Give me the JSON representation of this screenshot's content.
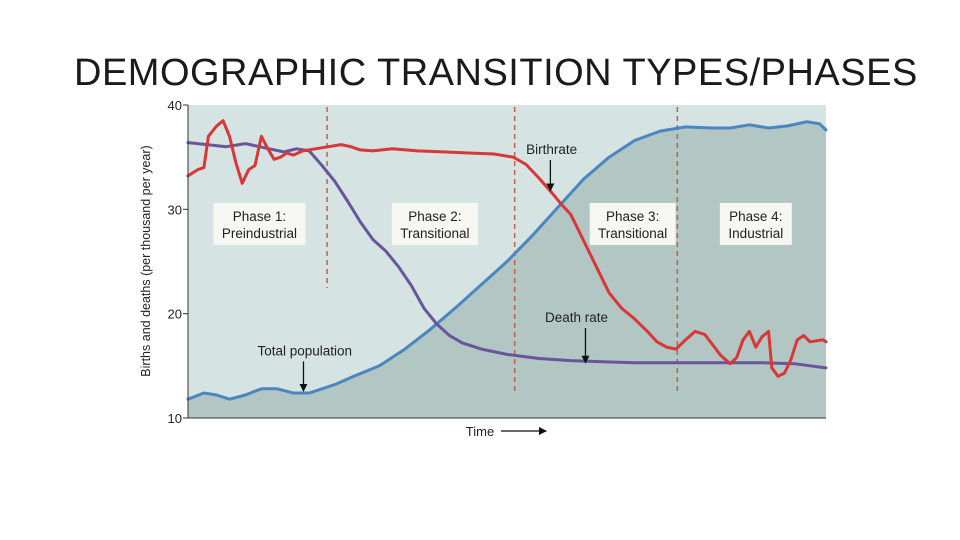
{
  "slide": {
    "title": "DEMOGRAPHIC TRANSITION TYPES/PHASES"
  },
  "chart_data": {
    "type": "line",
    "xlabel": "Time",
    "ylabel": "Births and deaths (per thousand per year)",
    "ylim": [
      10,
      40
    ],
    "yticks": [
      10,
      20,
      30,
      40
    ],
    "xlim": [
      0,
      100
    ],
    "grid": false,
    "colors": {
      "background": "#d5e3e3",
      "population_fill": "#b2c6c4",
      "birthrate": "#d93636",
      "deathrate": "#69559b",
      "population": "#4a86bf",
      "divider": "#c0604a"
    },
    "phase_boundaries": [
      21.8,
      51.2,
      76.7
    ],
    "phases": [
      {
        "line1": "Phase 1:",
        "line2": "Preindustrial",
        "x": 11.2,
        "y": 28.6
      },
      {
        "line1": "Phase 2:",
        "line2": "Transitional",
        "x": 38.7,
        "y": 28.6
      },
      {
        "line1": "Phase 3:",
        "line2": "Transitional",
        "x": 69.7,
        "y": 28.6
      },
      {
        "line1": "Phase 4:",
        "line2": "Industrial",
        "x": 89.0,
        "y": 28.6
      }
    ],
    "annotations": [
      {
        "text": "Birthrate",
        "x": 57.0,
        "y": 35.3,
        "arrow_to": [
          56.8,
          31.8
        ]
      },
      {
        "text": "Death rate",
        "x": 60.9,
        "y": 19.2,
        "arrow_to": [
          62.3,
          15.3
        ]
      },
      {
        "text": "Total population",
        "x": 18.3,
        "y": 16.0,
        "arrow_to": [
          18.1,
          12.6
        ]
      }
    ],
    "series": [
      {
        "key": "birthrate",
        "name": "Birthrate",
        "x": [
          0,
          1.5,
          2.5,
          3.2,
          4.5,
          5.5,
          6.5,
          7.5,
          8.5,
          9.5,
          10.5,
          11.5,
          12.5,
          13.5,
          14.5,
          15.5,
          16.5,
          18,
          20,
          22,
          24,
          25.5,
          27,
          29,
          32,
          36,
          40,
          44,
          48,
          51,
          53,
          55,
          57,
          58.5,
          60,
          62,
          64,
          66,
          68,
          70,
          72,
          73.5,
          75,
          76.5,
          78,
          79.5,
          81,
          82,
          83.5,
          85,
          86,
          87,
          88,
          89,
          90,
          91,
          91.5,
          92.5,
          93.5,
          94.5,
          95.5,
          96.5,
          97.5,
          98.5,
          99.5,
          100
        ],
        "y": [
          33.2,
          33.8,
          34.0,
          37.0,
          38.0,
          38.5,
          37.0,
          34.5,
          32.5,
          33.8,
          34.2,
          37.0,
          35.8,
          34.8,
          35.0,
          35.4,
          35.2,
          35.6,
          35.8,
          36.0,
          36.2,
          36.0,
          35.7,
          35.6,
          35.8,
          35.6,
          35.5,
          35.4,
          35.3,
          35.0,
          34.3,
          33.0,
          31.6,
          30.5,
          29.5,
          27.0,
          24.5,
          22.0,
          20.5,
          19.5,
          18.3,
          17.3,
          16.8,
          16.6,
          17.5,
          18.3,
          18.0,
          17.2,
          16.0,
          15.2,
          15.8,
          17.5,
          18.3,
          16.8,
          17.8,
          18.3,
          14.8,
          14.0,
          14.3,
          15.6,
          17.5,
          17.9,
          17.3,
          17.4,
          17.5,
          17.3
        ]
      },
      {
        "key": "deathrate",
        "name": "Death rate",
        "x": [
          0,
          3,
          6,
          9,
          12,
          15,
          17,
          19,
          21,
          23,
          25,
          27,
          29,
          31,
          33,
          35,
          37,
          39,
          41,
          43,
          46,
          50,
          55,
          60,
          65,
          70,
          75,
          80,
          85,
          90,
          95,
          100
        ],
        "y": [
          36.4,
          36.2,
          36.0,
          36.3,
          35.9,
          35.5,
          35.8,
          35.6,
          34.2,
          32.7,
          30.8,
          28.8,
          27.1,
          26.0,
          24.5,
          22.7,
          20.5,
          19.0,
          17.9,
          17.2,
          16.6,
          16.1,
          15.7,
          15.5,
          15.4,
          15.3,
          15.3,
          15.3,
          15.3,
          15.3,
          15.2,
          14.8
        ]
      },
      {
        "key": "population",
        "name": "Total population",
        "x": [
          0,
          2.5,
          4.5,
          6.5,
          9,
          11.5,
          14,
          16.5,
          19,
          21,
          23,
          26,
          30,
          34,
          38,
          42,
          46,
          50,
          54,
          58,
          62,
          66,
          70,
          74,
          78,
          82,
          85,
          88,
          91,
          94,
          97,
          99,
          100
        ],
        "y": [
          11.8,
          12.4,
          12.2,
          11.8,
          12.2,
          12.8,
          12.8,
          12.4,
          12.4,
          12.8,
          13.2,
          14.0,
          15.0,
          16.6,
          18.5,
          20.6,
          22.8,
          25.0,
          27.5,
          30.2,
          32.9,
          35.0,
          36.6,
          37.5,
          37.9,
          37.8,
          37.8,
          38.1,
          37.8,
          38.0,
          38.4,
          38.2,
          37.6
        ]
      }
    ]
  }
}
